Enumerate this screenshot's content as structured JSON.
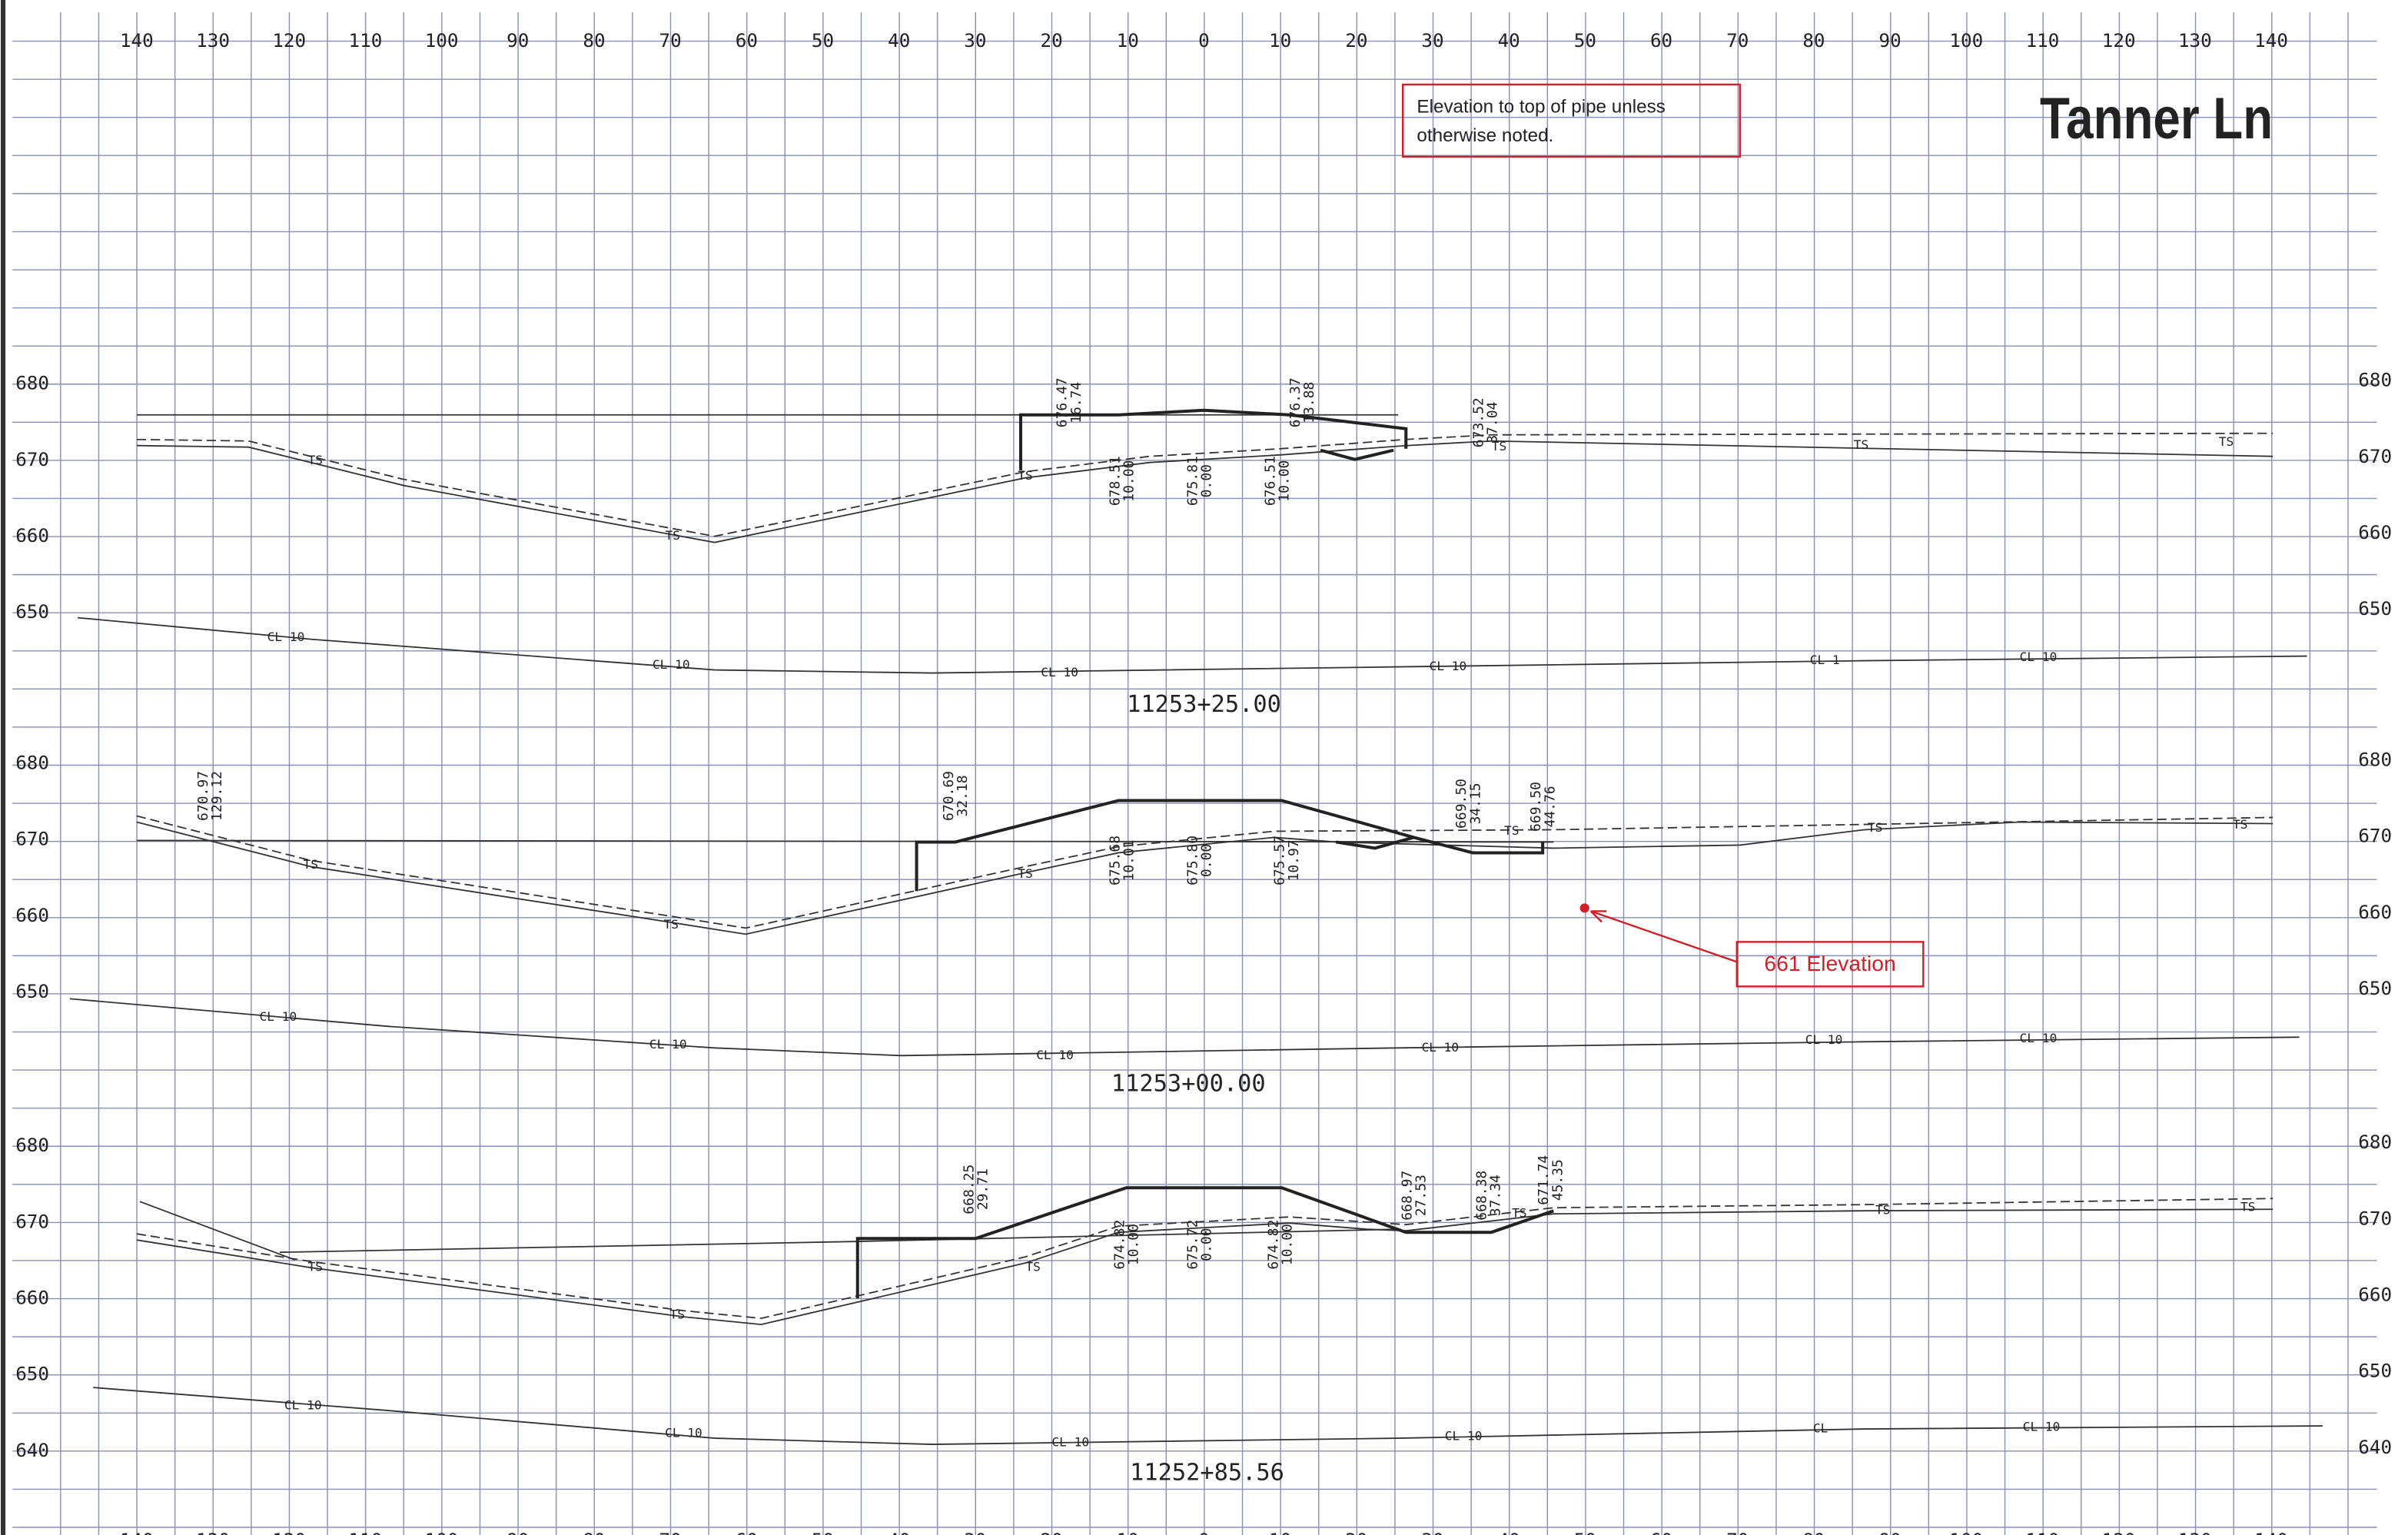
{
  "title": "Tanner Ln",
  "note": {
    "lines": [
      "Elevation to top of pipe unless",
      "otherwise noted."
    ]
  },
  "callout": "661 Elevation",
  "offsets": [
    "140",
    "130",
    "120",
    "110",
    "100",
    "90",
    "80",
    "70",
    "60",
    "50",
    "40",
    "30",
    "20",
    "10",
    "0",
    "10",
    "20",
    "30",
    "40",
    "50",
    "60",
    "70",
    "80",
    "90",
    "100",
    "110",
    "120",
    "130",
    "140"
  ],
  "sections": [
    {
      "station": "11253+25.00",
      "elevations": [
        "680",
        "670",
        "660",
        "650"
      ],
      "labels": [
        [
          "676.47",
          "16.74"
        ],
        [
          "676.37",
          "13.88"
        ],
        [
          "673.52",
          "37.04"
        ],
        [
          "678.51",
          "10.00"
        ],
        [
          "675.81",
          "0.00"
        ],
        [
          "676.51",
          "10.00"
        ]
      ],
      "ts": [
        "TS",
        "TS",
        "TS",
        "TS",
        "TS",
        "TS"
      ],
      "cl": [
        "CL 10",
        "CL 10",
        "CL 10",
        "CL 10",
        "CL 1",
        "CL 10"
      ]
    },
    {
      "station": "11253+00.00",
      "elevations": [
        "680",
        "670",
        "660",
        "650"
      ],
      "labels": [
        [
          "670.97",
          "129.12"
        ],
        [
          "670.69",
          "32.18"
        ],
        [
          "669.50",
          "34.15"
        ],
        [
          "669.50",
          "44.76"
        ],
        [
          "675.68",
          "10.01"
        ],
        [
          "675.80",
          "0.00"
        ],
        [
          "675.57",
          "10.97"
        ]
      ],
      "ts": [
        "TS",
        "TS",
        "TS",
        "TS",
        "TS",
        "TS"
      ],
      "cl": [
        "CL 10",
        "CL 10",
        "CL 10",
        "CL 10",
        "CL 10",
        "CL 10"
      ]
    },
    {
      "station": "11252+85.56",
      "elevations": [
        "680",
        "670",
        "660",
        "650",
        "640"
      ],
      "labels": [
        [
          "668.25",
          "29.71"
        ],
        [
          "668.97",
          "27.53"
        ],
        [
          "668.38",
          "37.34"
        ],
        [
          "671.74",
          "45.35"
        ],
        [
          "674.82",
          "10.00"
        ],
        [
          "675.72",
          "0.00"
        ],
        [
          "674.82",
          "10.00"
        ]
      ],
      "ts": [
        "TS",
        "TS",
        "TS",
        "TS",
        "TS",
        "TS"
      ],
      "cl": [
        "CL 10",
        "CL 10",
        "CL 10",
        "CL 10",
        "CL",
        "CL 10"
      ]
    }
  ]
}
